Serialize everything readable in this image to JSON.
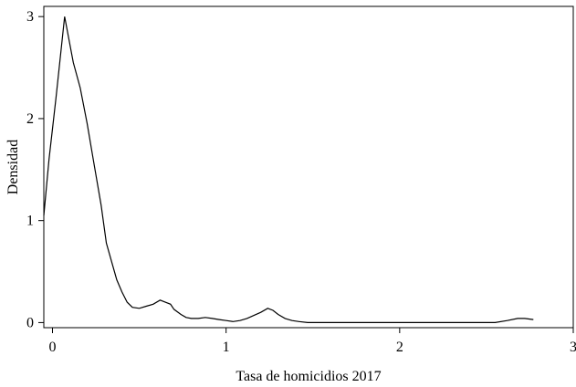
{
  "chart_data": {
    "type": "line",
    "title": "",
    "xlabel": "Tasa de homicidios 2017",
    "ylabel": "Densidad",
    "xlim": [
      -0.05,
      3.0
    ],
    "ylim": [
      -0.05,
      3.1
    ],
    "xticks": [
      0,
      1,
      2,
      3
    ],
    "yticks": [
      0,
      1,
      2,
      3
    ],
    "grid": false,
    "series": [
      {
        "x": [
          -0.05,
          -0.02,
          0.02,
          0.07,
          0.12,
          0.16,
          0.2,
          0.24,
          0.28,
          0.31,
          0.34,
          0.37,
          0.4,
          0.43,
          0.46,
          0.5,
          0.54,
          0.58,
          0.62,
          0.65,
          0.68,
          0.7,
          0.74,
          0.77,
          0.8,
          0.84,
          0.88,
          0.92,
          0.96,
          1.0,
          1.04,
          1.08,
          1.12,
          1.16,
          1.2,
          1.24,
          1.27,
          1.3,
          1.34,
          1.38,
          1.42,
          1.47,
          1.6,
          1.8,
          2.0,
          2.2,
          2.4,
          2.55,
          2.62,
          2.68,
          2.72,
          2.77
        ],
        "y": [
          1.05,
          1.6,
          2.2,
          3.0,
          2.55,
          2.3,
          1.95,
          1.55,
          1.15,
          0.78,
          0.6,
          0.42,
          0.3,
          0.2,
          0.15,
          0.14,
          0.16,
          0.18,
          0.22,
          0.2,
          0.18,
          0.13,
          0.08,
          0.05,
          0.04,
          0.04,
          0.05,
          0.04,
          0.03,
          0.02,
          0.01,
          0.02,
          0.04,
          0.07,
          0.1,
          0.14,
          0.12,
          0.08,
          0.04,
          0.02,
          0.01,
          0.0,
          0.0,
          0.0,
          0.0,
          0.0,
          0.0,
          0.0,
          0.02,
          0.04,
          0.04,
          0.03
        ]
      }
    ]
  }
}
